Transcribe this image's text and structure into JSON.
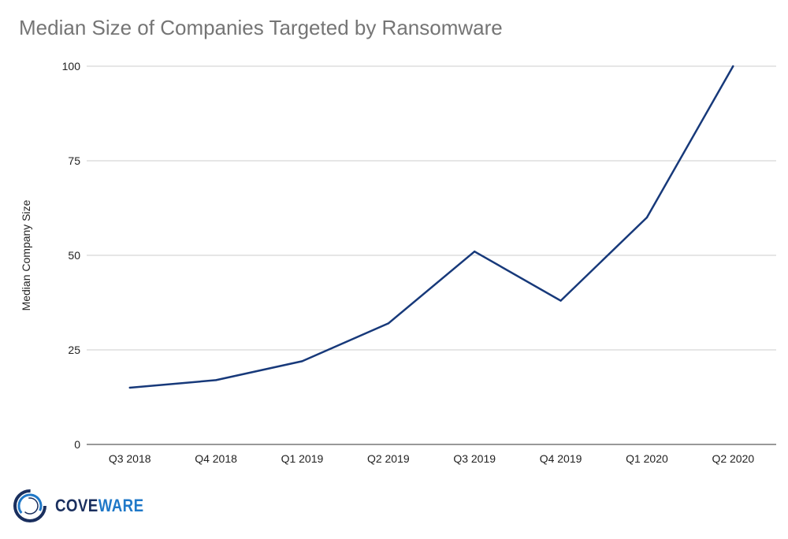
{
  "chart_data": {
    "type": "line",
    "title": "Median Size of Companies Targeted by Ransomware",
    "xlabel": "",
    "ylabel": "Median Company Size",
    "categories": [
      "Q3 2018",
      "Q4 2018",
      "Q1 2019",
      "Q2 2019",
      "Q3 2019",
      "Q4 2019",
      "Q1 2020",
      "Q2 2020"
    ],
    "series": [
      {
        "values": [
          15,
          17,
          22,
          32,
          51,
          38,
          60,
          100
        ],
        "color": "#17397a"
      }
    ],
    "ylim": [
      0,
      100
    ],
    "yticks": [
      0,
      25,
      50,
      75,
      100
    ],
    "grid": true,
    "legend": "none"
  },
  "logo": {
    "text_part1": "COVE",
    "text_part2": "WARE",
    "colors": {
      "dark": "#1a2f5e",
      "light": "#1f78c8"
    }
  }
}
